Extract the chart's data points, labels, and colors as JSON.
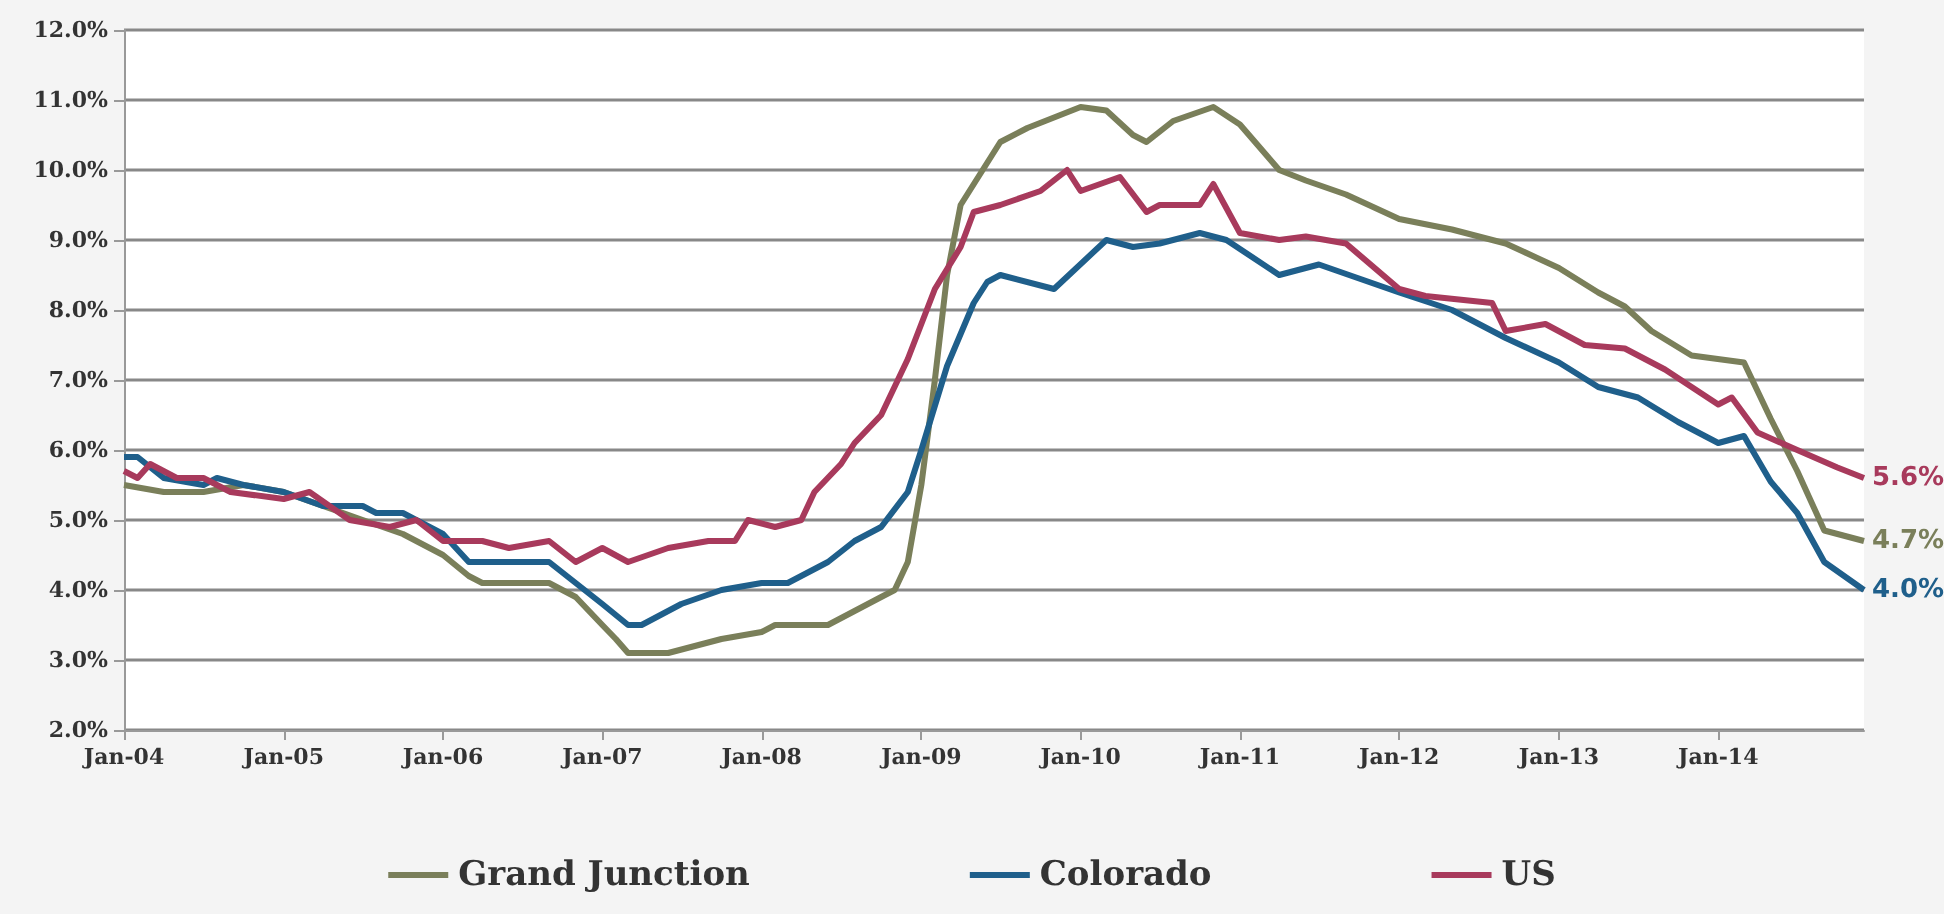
{
  "chart_data": {
    "type": "line",
    "xlim": [
      "2004-01",
      "2014-12"
    ],
    "xticks": [
      {
        "value": "2004-01",
        "label": "Jan-04"
      },
      {
        "value": "2005-01",
        "label": "Jan-05"
      },
      {
        "value": "2006-01",
        "label": "Jan-06"
      },
      {
        "value": "2007-01",
        "label": "Jan-07"
      },
      {
        "value": "2008-01",
        "label": "Jan-08"
      },
      {
        "value": "2009-01",
        "label": "Jan-09"
      },
      {
        "value": "2010-01",
        "label": "Jan-10"
      },
      {
        "value": "2011-01",
        "label": "Jan-11"
      },
      {
        "value": "2012-01",
        "label": "Jan-12"
      },
      {
        "value": "2013-01",
        "label": "Jan-13"
      },
      {
        "value": "2014-01",
        "label": "Jan-14"
      }
    ],
    "ylim": [
      2,
      12
    ],
    "yticks": [
      {
        "value": 2,
        "label": "2.0%"
      },
      {
        "value": 3,
        "label": "3.0%"
      },
      {
        "value": 4,
        "label": "4.0%"
      },
      {
        "value": 5,
        "label": "5.0%"
      },
      {
        "value": 6,
        "label": "6.0%"
      },
      {
        "value": 7,
        "label": "7.0%"
      },
      {
        "value": 8,
        "label": "8.0%"
      },
      {
        "value": 9,
        "label": "9.0%"
      },
      {
        "value": 10,
        "label": "10.0%"
      },
      {
        "value": 11,
        "label": "11.0%"
      },
      {
        "value": 12,
        "label": "12.0%"
      }
    ],
    "grid": "y",
    "legend": "bottom",
    "marker": "none",
    "series": [
      {
        "name": "Grand Junction",
        "color": "#7a7f5a",
        "x": [
          "2004-01",
          "2004-04",
          "2004-07",
          "2004-10",
          "2005-01",
          "2005-04",
          "2005-07",
          "2005-10",
          "2006-01",
          "2006-03",
          "2006-04",
          "2006-09",
          "2006-11",
          "2007-01",
          "2007-02",
          "2007-03",
          "2007-06",
          "2007-08",
          "2007-10",
          "2008-01",
          "2008-02",
          "2008-06",
          "2008-08",
          "2008-10",
          "2008-11",
          "2008-12",
          "2009-01",
          "2009-02",
          "2009-03",
          "2009-04",
          "2009-07",
          "2009-09",
          "2010-01",
          "2010-03",
          "2010-05",
          "2010-06",
          "2010-08",
          "2010-11",
          "2011-01",
          "2011-04",
          "2011-06",
          "2011-09",
          "2012-01",
          "2012-05",
          "2012-09",
          "2013-01",
          "2013-04",
          "2013-06",
          "2013-08",
          "2013-11",
          "2014-03",
          "2014-05",
          "2014-07",
          "2014-09",
          "2014-12"
        ],
        "values": [
          5.5,
          5.4,
          5.4,
          5.5,
          5.4,
          5.2,
          5.0,
          4.8,
          4.5,
          4.2,
          4.1,
          4.1,
          3.9,
          3.5,
          3.3,
          3.1,
          3.1,
          3.2,
          3.3,
          3.4,
          3.5,
          3.5,
          3.7,
          3.9,
          4.0,
          4.4,
          5.5,
          7.0,
          8.5,
          9.5,
          10.4,
          10.6,
          10.9,
          10.85,
          10.5,
          10.4,
          10.7,
          10.9,
          10.65,
          10.0,
          9.85,
          9.65,
          9.3,
          9.15,
          8.95,
          8.6,
          8.25,
          8.05,
          7.7,
          7.35,
          7.25,
          6.45,
          5.7,
          4.85,
          4.7
        ],
        "value_labels": [
          null,
          null,
          null,
          null,
          null,
          null,
          null,
          null,
          null,
          null,
          null,
          null,
          null,
          null,
          null,
          null,
          null,
          null,
          null,
          null,
          null,
          null,
          null,
          null,
          null,
          null,
          null,
          null,
          null,
          null,
          null,
          null,
          null,
          null,
          null,
          null,
          null,
          null,
          null,
          null,
          null,
          null,
          null,
          null,
          null,
          null,
          null,
          null,
          null,
          null,
          null,
          null,
          null,
          null,
          "4.7%"
        ]
      },
      {
        "name": "Colorado",
        "color": "#1f5f8b",
        "x": [
          "2004-01",
          "2004-02",
          "2004-04",
          "2004-07",
          "2004-08",
          "2004-10",
          "2005-01",
          "2005-04",
          "2005-07",
          "2005-08",
          "2005-10",
          "2006-01",
          "2006-03",
          "2006-09",
          "2006-11",
          "2007-01",
          "2007-03",
          "2007-04",
          "2007-07",
          "2007-10",
          "2008-01",
          "2008-03",
          "2008-06",
          "2008-08",
          "2008-10",
          "2008-12",
          "2009-01",
          "2009-03",
          "2009-05",
          "2009-06",
          "2009-07",
          "2009-11",
          "2010-03",
          "2010-05",
          "2010-07",
          "2010-10",
          "2010-12",
          "2011-04",
          "2011-07",
          "2011-10",
          "2012-01",
          "2012-05",
          "2012-09",
          "2013-01",
          "2013-04",
          "2013-07",
          "2013-10",
          "2014-01",
          "2014-03",
          "2014-05",
          "2014-07",
          "2014-09",
          "2014-12"
        ],
        "values": [
          5.9,
          5.9,
          5.6,
          5.5,
          5.6,
          5.5,
          5.4,
          5.2,
          5.2,
          5.1,
          5.1,
          4.8,
          4.4,
          4.4,
          4.1,
          3.8,
          3.5,
          3.5,
          3.8,
          4.0,
          4.1,
          4.1,
          4.4,
          4.7,
          4.9,
          5.4,
          6.0,
          7.2,
          8.1,
          8.4,
          8.5,
          8.3,
          9.0,
          8.9,
          8.95,
          9.1,
          9.0,
          8.5,
          8.65,
          8.45,
          8.25,
          8.0,
          7.6,
          7.25,
          6.9,
          6.75,
          6.4,
          6.1,
          6.2,
          5.55,
          5.1,
          4.4,
          4.0
        ],
        "value_labels": [
          null,
          null,
          null,
          null,
          null,
          null,
          null,
          null,
          null,
          null,
          null,
          null,
          null,
          null,
          null,
          null,
          null,
          null,
          null,
          null,
          null,
          null,
          null,
          null,
          null,
          null,
          null,
          null,
          null,
          null,
          null,
          null,
          null,
          null,
          null,
          null,
          null,
          null,
          null,
          null,
          null,
          null,
          null,
          null,
          null,
          null,
          null,
          null,
          null,
          null,
          null,
          null,
          "4.0%"
        ]
      },
      {
        "name": "US",
        "color": "#a83a5c",
        "x": [
          "2004-01",
          "2004-02",
          "2004-03",
          "2004-05",
          "2004-07",
          "2004-09",
          "2005-01",
          "2005-03",
          "2005-06",
          "2005-09",
          "2005-11",
          "2006-01",
          "2006-04",
          "2006-06",
          "2006-09",
          "2006-11",
          "2007-01",
          "2007-03",
          "2007-06",
          "2007-09",
          "2007-11",
          "2007-12",
          "2008-02",
          "2008-04",
          "2008-05",
          "2008-07",
          "2008-08",
          "2008-10",
          "2008-12",
          "2009-01",
          "2009-02",
          "2009-04",
          "2009-05",
          "2009-07",
          "2009-10",
          "2009-12",
          "2010-01",
          "2010-04",
          "2010-06",
          "2010-07",
          "2010-10",
          "2010-11",
          "2011-01",
          "2011-04",
          "2011-06",
          "2011-09",
          "2012-01",
          "2012-03",
          "2012-08",
          "2012-09",
          "2012-12",
          "2013-03",
          "2013-06",
          "2013-09",
          "2014-01",
          "2014-02",
          "2014-04",
          "2014-07",
          "2014-10",
          "2014-12"
        ],
        "values": [
          5.7,
          5.6,
          5.8,
          5.6,
          5.6,
          5.4,
          5.3,
          5.4,
          5.0,
          4.9,
          5.0,
          4.7,
          4.7,
          4.6,
          4.7,
          4.4,
          4.6,
          4.4,
          4.6,
          4.7,
          4.7,
          5.0,
          4.9,
          5.0,
          5.4,
          5.8,
          6.1,
          6.5,
          7.3,
          7.8,
          8.3,
          8.9,
          9.4,
          9.5,
          9.7,
          10.0,
          9.7,
          9.9,
          9.4,
          9.5,
          9.5,
          9.8,
          9.1,
          9.0,
          9.05,
          8.95,
          8.3,
          8.2,
          8.1,
          7.7,
          7.8,
          7.5,
          7.45,
          7.15,
          6.65,
          6.75,
          6.25,
          6.0,
          5.75,
          5.6
        ],
        "value_labels": [
          null,
          null,
          null,
          null,
          null,
          null,
          null,
          null,
          null,
          null,
          null,
          null,
          null,
          null,
          null,
          null,
          null,
          null,
          null,
          null,
          null,
          null,
          null,
          null,
          null,
          null,
          null,
          null,
          null,
          null,
          null,
          null,
          null,
          null,
          null,
          null,
          null,
          null,
          null,
          null,
          null,
          null,
          null,
          null,
          null,
          null,
          null,
          null,
          null,
          null,
          null,
          null,
          null,
          null,
          null,
          null,
          null,
          null,
          null,
          "5.6%"
        ]
      }
    ]
  }
}
